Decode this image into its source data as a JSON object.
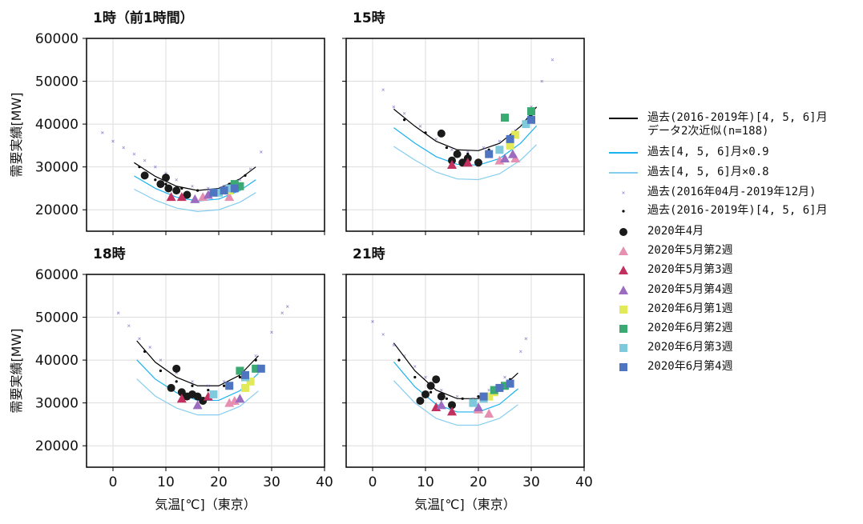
{
  "chart_data": [
    {
      "type": "scatter",
      "title": "1時（前1時間）",
      "ylabel": "需要実績[MW]",
      "xlim": [
        -5,
        40
      ],
      "ylim": [
        15000,
        60000
      ],
      "xticks": [
        0,
        10,
        20,
        30,
        40
      ],
      "yticks": [
        20000,
        30000,
        40000,
        50000,
        60000
      ],
      "grid": true,
      "series": [
        {
          "name": "過去(2016-2019年)[4, 5, 6]月\nデータ2次近似(n=188)",
          "marker": "line",
          "color": "#000000",
          "x": [
            4,
            8,
            12,
            16,
            20,
            24,
            27
          ],
          "values": [
            31000,
            27800,
            25500,
            24500,
            25000,
            27200,
            30000
          ]
        },
        {
          "name": "過去[4, 5, 6]月×0.9",
          "marker": "line",
          "color": "#1ab2ef",
          "x": [
            4,
            8,
            12,
            16,
            20,
            24,
            27
          ],
          "values": [
            27900,
            25000,
            22950,
            22050,
            22500,
            24480,
            27000
          ]
        },
        {
          "name": "過去[4, 5, 6]月×0.8",
          "marker": "line",
          "color": "#86cdf0",
          "x": [
            4,
            8,
            12,
            16,
            20,
            24,
            27
          ],
          "values": [
            24800,
            22240,
            20400,
            19600,
            20000,
            21760,
            24000
          ]
        },
        {
          "name": "過去(2016年04月-2019年12月)",
          "marker": "x",
          "color": "#6a64c0",
          "x": [
            -2,
            0,
            2,
            4,
            6,
            8,
            10,
            12,
            15,
            18,
            21,
            24,
            26,
            28
          ],
          "values": [
            38000,
            36000,
            34500,
            33000,
            31500,
            30000,
            28500,
            27000,
            25500,
            25000,
            25500,
            27000,
            29500,
            33500
          ]
        },
        {
          "name": "過去(2016-2019年)[4, 5, 6]月",
          "marker": "dot",
          "color": "#000000",
          "x": [
            5,
            8,
            10,
            13,
            16,
            19,
            22,
            25
          ],
          "values": [
            30000,
            27000,
            26000,
            25000,
            24500,
            24500,
            26000,
            28000
          ]
        },
        {
          "name": "2020年4月",
          "marker": "circle",
          "color": "#1a1a1a",
          "x": [
            6,
            9,
            10,
            10.5,
            12,
            14
          ],
          "values": [
            28000,
            26000,
            27500,
            25000,
            24500,
            23500
          ]
        },
        {
          "name": "2020年5月第2週",
          "marker": "triangle",
          "color": "#e68fb0",
          "x": [
            17,
            22
          ],
          "values": [
            23000,
            23000
          ]
        },
        {
          "name": "2020年5月第3週",
          "marker": "triangle",
          "color": "#c2305f",
          "x": [
            11,
            13
          ],
          "values": [
            23000,
            23000
          ]
        },
        {
          "name": "2020年5月第4週",
          "marker": "triangle",
          "color": "#9b6cc0",
          "x": [
            15.5,
            18
          ],
          "values": [
            22500,
            23500
          ]
        },
        {
          "name": "2020年6月第1週",
          "marker": "square",
          "color": "#e2ea5a",
          "x": [
            22,
            23
          ],
          "values": [
            24500,
            25500
          ]
        },
        {
          "name": "2020年6月第2週",
          "marker": "square",
          "color": "#3aaa72",
          "x": [
            23,
            24
          ],
          "values": [
            26000,
            25500
          ]
        },
        {
          "name": "2020年6月第3週",
          "marker": "square",
          "color": "#7ec9dc",
          "x": [
            20,
            22
          ],
          "values": [
            24000,
            25000
          ]
        },
        {
          "name": "2020年6月第4週",
          "marker": "square",
          "color": "#4f75c0",
          "x": [
            19,
            21,
            23
          ],
          "values": [
            24000,
            24500,
            25000
          ]
        }
      ]
    },
    {
      "type": "scatter",
      "title": "15時",
      "xlim": [
        -5,
        40
      ],
      "ylim": [
        15000,
        60000
      ],
      "xticks": [
        0,
        10,
        20,
        30,
        40
      ],
      "yticks": [
        20000,
        30000,
        40000,
        50000,
        60000
      ],
      "grid": true,
      "series": [
        {
          "marker": "line",
          "color": "#000000",
          "x": [
            4,
            8,
            12,
            16,
            20,
            24,
            28,
            31
          ],
          "values": [
            43500,
            39500,
            36000,
            34000,
            33800,
            35500,
            39500,
            44000
          ]
        },
        {
          "marker": "line",
          "color": "#1ab2ef",
          "x": [
            4,
            8,
            12,
            16,
            20,
            24,
            28,
            31
          ],
          "values": [
            39150,
            35550,
            32400,
            30600,
            30420,
            31950,
            35550,
            39600
          ]
        },
        {
          "marker": "line",
          "color": "#86cdf0",
          "x": [
            4,
            8,
            12,
            16,
            20,
            24,
            28,
            31
          ],
          "values": [
            34800,
            31600,
            28800,
            27200,
            27040,
            28400,
            31600,
            35200
          ]
        },
        {
          "marker": "x",
          "color": "#6a64c0",
          "x": [
            2,
            4,
            6,
            9,
            12,
            15,
            18,
            21,
            24,
            27,
            30,
            32,
            34
          ],
          "values": [
            48000,
            44000,
            42500,
            39500,
            36500,
            34000,
            33500,
            34500,
            36000,
            38500,
            44000,
            50000,
            55000
          ]
        },
        {
          "marker": "dot",
          "color": "#000000",
          "x": [
            6,
            10,
            14,
            18,
            22,
            26,
            30
          ],
          "values": [
            41000,
            38000,
            34500,
            33000,
            34000,
            36500,
            42000
          ]
        },
        {
          "marker": "circle",
          "color": "#1a1a1a",
          "x": [
            13,
            15,
            16,
            17,
            18,
            20
          ],
          "values": [
            37800,
            31500,
            33000,
            31000,
            32000,
            31000
          ]
        },
        {
          "marker": "triangle",
          "color": "#e68fb0",
          "x": [
            24,
            27
          ],
          "values": [
            31500,
            32000
          ]
        },
        {
          "marker": "triangle",
          "color": "#c2305f",
          "x": [
            15,
            18
          ],
          "values": [
            30500,
            31000
          ]
        },
        {
          "marker": "triangle",
          "color": "#9b6cc0",
          "x": [
            25,
            26.5
          ],
          "values": [
            32000,
            33000
          ]
        },
        {
          "marker": "square",
          "color": "#e2ea5a",
          "x": [
            26,
            27
          ],
          "values": [
            35000,
            37500
          ]
        },
        {
          "marker": "square",
          "color": "#3aaa72",
          "x": [
            25,
            30
          ],
          "values": [
            41500,
            43000
          ]
        },
        {
          "marker": "square",
          "color": "#7ec9dc",
          "x": [
            24,
            29
          ],
          "values": [
            34000,
            40000
          ]
        },
        {
          "marker": "square",
          "color": "#4f75c0",
          "x": [
            22,
            26,
            30
          ],
          "values": [
            33000,
            36500,
            41000
          ]
        }
      ]
    },
    {
      "type": "scatter",
      "title": "18時",
      "ylabel": "需要実績[MW]",
      "xlabel": "気温[℃]（東京）",
      "xlim": [
        -5,
        40
      ],
      "ylim": [
        15000,
        60000
      ],
      "xticks": [
        0,
        10,
        20,
        30,
        40
      ],
      "yticks": [
        20000,
        30000,
        40000,
        50000,
        60000
      ],
      "grid": true,
      "series": [
        {
          "marker": "line",
          "color": "#000000",
          "x": [
            4.5,
            8,
            12,
            16,
            20,
            24,
            27.5
          ],
          "values": [
            44500,
            39500,
            36000,
            34000,
            34000,
            36500,
            41000
          ]
        },
        {
          "marker": "line",
          "color": "#1ab2ef",
          "x": [
            4.5,
            8,
            12,
            16,
            20,
            24,
            27.5
          ],
          "values": [
            40050,
            35550,
            32400,
            30600,
            30600,
            32850,
            36900
          ]
        },
        {
          "marker": "line",
          "color": "#86cdf0",
          "x": [
            4.5,
            8,
            12,
            16,
            20,
            24,
            27.5
          ],
          "values": [
            35600,
            31600,
            28800,
            27200,
            27200,
            29200,
            32800
          ]
        },
        {
          "marker": "x",
          "color": "#6a64c0",
          "x": [
            1,
            3,
            5,
            7,
            9,
            12,
            15,
            18,
            21,
            24,
            27,
            30,
            32,
            33
          ],
          "values": [
            51000,
            48000,
            45000,
            43000,
            40000,
            37000,
            35000,
            34000,
            35000,
            37000,
            41000,
            46500,
            51000,
            52500
          ]
        },
        {
          "marker": "dot",
          "color": "#000000",
          "x": [
            6,
            9,
            12,
            15,
            18,
            21,
            24,
            27
          ],
          "values": [
            42000,
            37500,
            35000,
            34000,
            33000,
            34000,
            36000,
            40000
          ]
        },
        {
          "marker": "circle",
          "color": "#1a1a1a",
          "x": [
            11,
            12,
            13,
            14,
            15,
            16,
            17
          ],
          "values": [
            33500,
            38000,
            32500,
            31500,
            32000,
            31500,
            30500
          ]
        },
        {
          "marker": "triangle",
          "color": "#e68fb0",
          "x": [
            22,
            23
          ],
          "values": [
            30000,
            30500
          ]
        },
        {
          "marker": "triangle",
          "color": "#c2305f",
          "x": [
            13,
            18
          ],
          "values": [
            31000,
            31500
          ]
        },
        {
          "marker": "triangle",
          "color": "#9b6cc0",
          "x": [
            16,
            24
          ],
          "values": [
            29500,
            31000
          ]
        },
        {
          "marker": "square",
          "color": "#e2ea5a",
          "x": [
            25,
            26
          ],
          "values": [
            33500,
            35000
          ]
        },
        {
          "marker": "square",
          "color": "#3aaa72",
          "x": [
            24,
            27
          ],
          "values": [
            37500,
            38000
          ]
        },
        {
          "marker": "square",
          "color": "#7ec9dc",
          "x": [
            19,
            25
          ],
          "values": [
            32000,
            36000
          ]
        },
        {
          "marker": "square",
          "color": "#4f75c0",
          "x": [
            22,
            25,
            28
          ],
          "values": [
            34000,
            36500,
            38000
          ]
        }
      ]
    },
    {
      "type": "scatter",
      "title": "21時",
      "xlabel": "気温[℃]（東京）",
      "xlim": [
        -5,
        40
      ],
      "ylim": [
        15000,
        60000
      ],
      "xticks": [
        0,
        10,
        20,
        30,
        40
      ],
      "yticks": [
        20000,
        30000,
        40000,
        50000,
        60000
      ],
      "grid": true,
      "series": [
        {
          "marker": "line",
          "color": "#000000",
          "x": [
            4,
            8,
            12,
            16,
            20,
            24,
            27.5
          ],
          "values": [
            44000,
            37500,
            33000,
            31000,
            31000,
            33000,
            37000
          ]
        },
        {
          "marker": "line",
          "color": "#1ab2ef",
          "x": [
            4,
            8,
            12,
            16,
            20,
            24,
            27.5
          ],
          "values": [
            39600,
            33750,
            29700,
            27900,
            27900,
            29700,
            33300
          ]
        },
        {
          "marker": "line",
          "color": "#86cdf0",
          "x": [
            4,
            8,
            12,
            16,
            20,
            24,
            27.5
          ],
          "values": [
            35200,
            30000,
            26400,
            24800,
            24800,
            26400,
            29600
          ]
        },
        {
          "marker": "x",
          "color": "#6a64c0",
          "x": [
            0,
            2,
            4,
            6,
            8,
            10,
            13,
            16,
            19,
            22,
            25,
            28,
            29
          ],
          "values": [
            49000,
            46000,
            43500,
            41000,
            38500,
            36000,
            33000,
            31500,
            31000,
            33000,
            36000,
            42000,
            45000
          ]
        },
        {
          "marker": "dot",
          "color": "#000000",
          "x": [
            5,
            8,
            11,
            14,
            17,
            20,
            23,
            26
          ],
          "values": [
            40000,
            36000,
            32500,
            31000,
            31000,
            31500,
            33000,
            35500
          ]
        },
        {
          "marker": "circle",
          "color": "#1a1a1a",
          "x": [
            9,
            10,
            11,
            12,
            13,
            15
          ],
          "values": [
            30500,
            32000,
            34000,
            35500,
            31500,
            29500
          ]
        },
        {
          "marker": "triangle",
          "color": "#e68fb0",
          "x": [
            20,
            22
          ],
          "values": [
            28500,
            27500
          ]
        },
        {
          "marker": "triangle",
          "color": "#c2305f",
          "x": [
            12,
            15
          ],
          "values": [
            29000,
            28000
          ]
        },
        {
          "marker": "triangle",
          "color": "#9b6cc0",
          "x": [
            13,
            20
          ],
          "values": [
            29500,
            29000
          ]
        },
        {
          "marker": "square",
          "color": "#e2ea5a",
          "x": [
            22,
            23
          ],
          "values": [
            31500,
            32500
          ]
        },
        {
          "marker": "square",
          "color": "#3aaa72",
          "x": [
            23,
            25
          ],
          "values": [
            33000,
            34000
          ]
        },
        {
          "marker": "square",
          "color": "#7ec9dc",
          "x": [
            19,
            21
          ],
          "values": [
            30000,
            31000
          ]
        },
        {
          "marker": "square",
          "color": "#4f75c0",
          "x": [
            21,
            24,
            26
          ],
          "values": [
            31500,
            33500,
            34500
          ]
        }
      ]
    }
  ]
}
